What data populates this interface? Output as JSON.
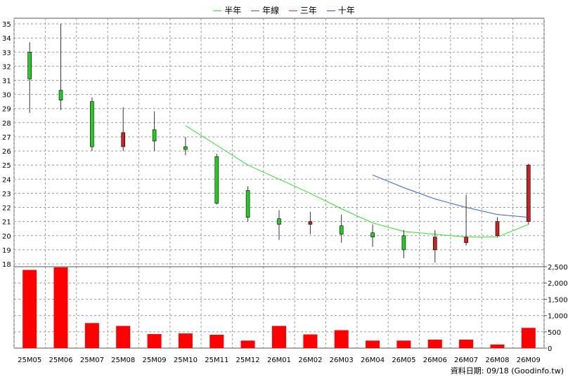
{
  "legend": [
    {
      "label": "半年",
      "color": "#33dd33"
    },
    {
      "label": "年線",
      "color": "#3366cc"
    },
    {
      "label": "三年",
      "color": "#cc3344"
    },
    {
      "label": "十年",
      "color": "#6633cc"
    }
  ],
  "footer": {
    "label": "資料日期: 09/18  (Goodinfo.tw)"
  },
  "chart_data": {
    "type": "candlestick",
    "categories": [
      "25M05",
      "25M06",
      "25M07",
      "25M08",
      "25M09",
      "25M10",
      "25M11",
      "25M12",
      "26M01",
      "26M02",
      "26M03",
      "26M04",
      "26M05",
      "26M06",
      "26M07",
      "26M08",
      "26M09"
    ],
    "ohlc": [
      {
        "open": 31.1,
        "high": 33.7,
        "low": 28.7,
        "close": 33.0
      },
      {
        "open": 29.6,
        "high": 35.0,
        "low": 28.9,
        "close": 30.3
      },
      {
        "open": 26.3,
        "high": 29.8,
        "low": 26.0,
        "close": 29.5
      },
      {
        "open": 27.3,
        "high": 29.1,
        "low": 26.0,
        "close": 26.3
      },
      {
        "open": 26.7,
        "high": 28.8,
        "low": 26.0,
        "close": 27.5
      },
      {
        "open": 26.1,
        "high": 27.0,
        "low": 25.7,
        "close": 26.3
      },
      {
        "open": 22.3,
        "high": 25.8,
        "low": 22.2,
        "close": 25.6
      },
      {
        "open": 21.3,
        "high": 23.5,
        "low": 21.0,
        "close": 23.2
      },
      {
        "open": 20.8,
        "high": 21.8,
        "low": 19.7,
        "close": 21.2
      },
      {
        "open": 21.0,
        "high": 21.7,
        "low": 20.1,
        "close": 20.8
      },
      {
        "open": 20.1,
        "high": 21.5,
        "low": 19.5,
        "close": 20.7
      },
      {
        "open": 19.9,
        "high": 20.8,
        "low": 19.2,
        "close": 20.2
      },
      {
        "open": 19.0,
        "high": 20.4,
        "low": 18.4,
        "close": 20.0
      },
      {
        "open": 19.9,
        "high": 20.4,
        "low": 18.1,
        "close": 19.0
      },
      {
        "open": 19.9,
        "high": 22.9,
        "low": 19.3,
        "close": 19.5
      },
      {
        "open": 21.0,
        "high": 21.3,
        "low": 19.9,
        "close": 20.0
      },
      {
        "open": 25.0,
        "high": 25.1,
        "low": 20.8,
        "close": 21.0
      }
    ],
    "ma_half_year": [
      null,
      null,
      null,
      null,
      null,
      27.8,
      26.4,
      25.0,
      24.0,
      23.0,
      21.9,
      20.9,
      20.3,
      20.1,
      19.9,
      19.9,
      20.8
    ],
    "ma_year": [
      null,
      null,
      null,
      null,
      null,
      null,
      null,
      null,
      null,
      null,
      null,
      24.3,
      23.4,
      22.6,
      22.0,
      21.5,
      21.3
    ],
    "volume": [
      2400,
      2480,
      770,
      680,
      430,
      450,
      410,
      230,
      680,
      420,
      550,
      230,
      230,
      260,
      260,
      110,
      620
    ],
    "price_ticks": [
      18,
      19,
      20,
      21,
      22,
      23,
      24,
      25,
      26,
      27,
      28,
      29,
      30,
      31,
      32,
      33,
      34,
      35
    ],
    "volume_ticks": [
      "0",
      "500",
      "1,000",
      "1,500",
      "2,000",
      "2,500"
    ],
    "price_range": [
      17.8,
      35.4
    ],
    "volume_range": [
      0,
      2500
    ],
    "grid": true,
    "legend_position": "top-center"
  }
}
